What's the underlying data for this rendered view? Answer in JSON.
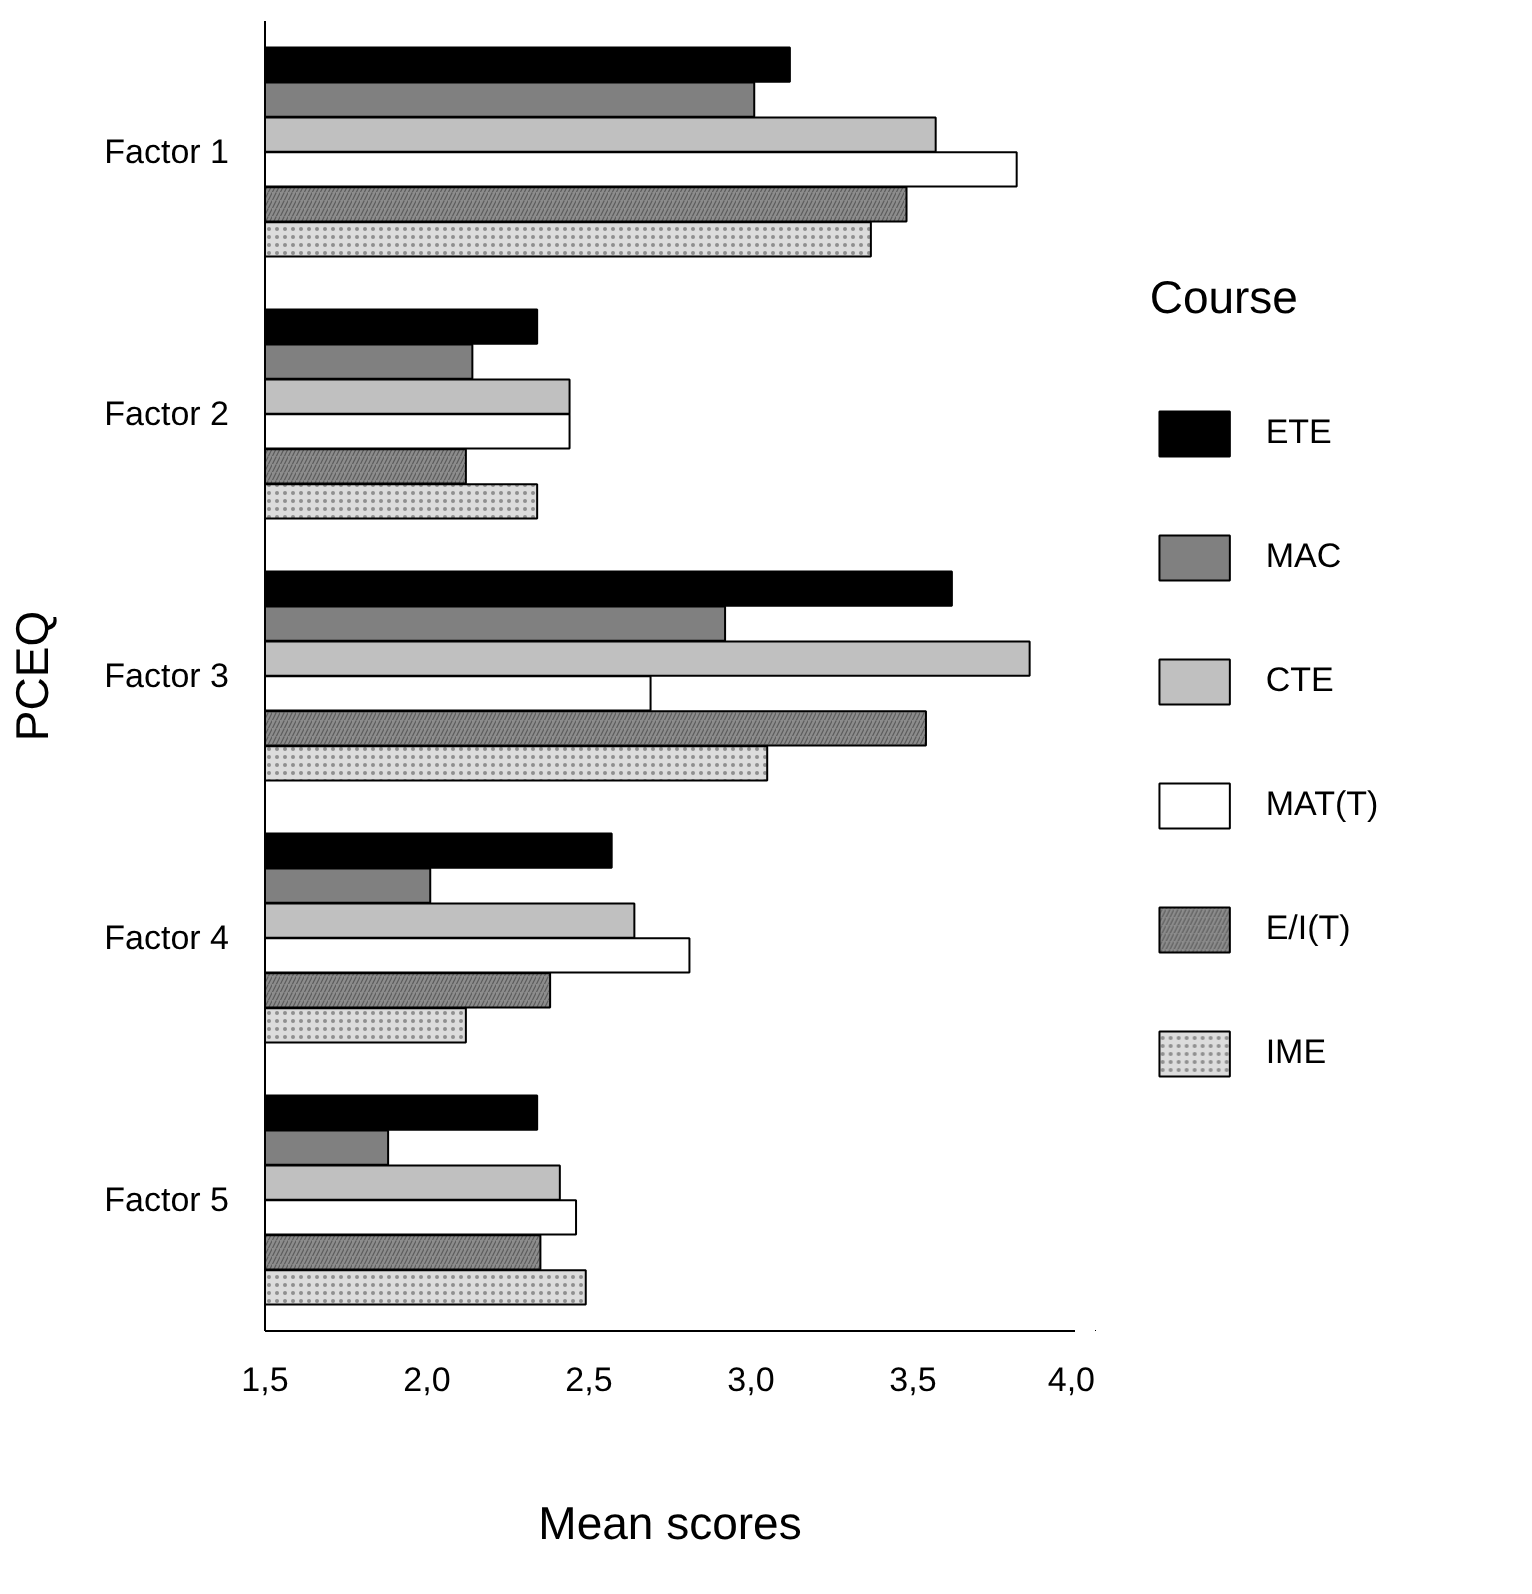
{
  "chart_data": {
    "type": "bar",
    "orientation": "horizontal",
    "xlabel": "Mean scores",
    "ylabel": "PCEQ",
    "legend": "right",
    "legend_title": "Course",
    "categories": [
      "Factor 1",
      "Factor 2",
      "Factor 3",
      "Factor 4",
      "Factor 5"
    ],
    "xlim": [
      1.5,
      4.0
    ],
    "xticks": [
      {
        "value": 1.5,
        "label": "1,5"
      },
      {
        "value": 2.0,
        "label": "2,0"
      },
      {
        "value": 2.5,
        "label": "2,5"
      },
      {
        "value": 3.0,
        "label": "3,0"
      },
      {
        "value": 3.5,
        "label": "3,5"
      },
      {
        "value": 4.0,
        "label": "4,0"
      }
    ],
    "series": [
      {
        "name": "ETE",
        "color": "#000000",
        "values": [
          3.12,
          2.34,
          3.62,
          2.57,
          2.34
        ]
      },
      {
        "name": "MAC",
        "color": "#808080",
        "values": [
          3.01,
          2.14,
          2.92,
          2.01,
          1.88
        ]
      },
      {
        "name": "CTE",
        "color": "#c0c0c0",
        "values": [
          3.57,
          2.44,
          3.86,
          2.64,
          2.41
        ]
      },
      {
        "name": "MAT(T)",
        "color": "#ffffff",
        "values": [
          3.82,
          2.44,
          2.69,
          2.81,
          2.46
        ]
      },
      {
        "name": "E/I(T)",
        "color": "#8c8c8c",
        "values": [
          3.48,
          2.12,
          3.54,
          2.38,
          2.35
        ]
      },
      {
        "name": "IME",
        "color": "#dcdcdc",
        "values": [
          3.37,
          2.34,
          3.05,
          2.12,
          2.49
        ]
      }
    ]
  }
}
